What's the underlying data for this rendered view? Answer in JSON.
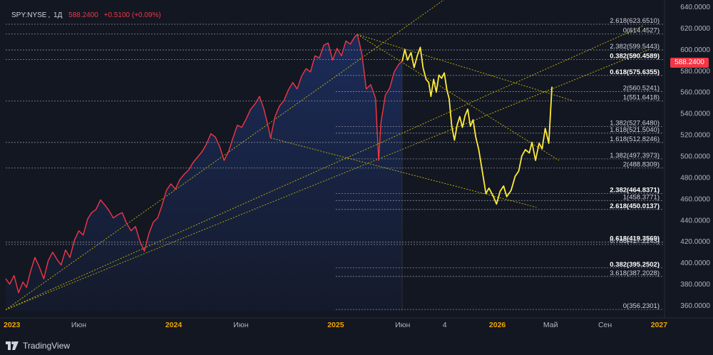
{
  "symbol": {
    "ticker": "SPY:NYSE",
    "interval": "1Д",
    "price": "588.2400",
    "change": "+0.5100 (+0.09%)"
  },
  "price_label": "588.2400",
  "brand": {
    "name": "TradingView",
    "icon": "tradingview-logo-icon"
  },
  "colors": {
    "background": "#131722",
    "history_line": "#f23645",
    "projection_line": "#ffeb3b",
    "fib_line": "#b2b5be",
    "trend_line": "#c8b900",
    "axis_text": "#b2b5be",
    "year_text": "#f0a500",
    "area_fill": "#1c2d5c"
  },
  "chart_data": {
    "type": "line",
    "y_axis": {
      "range": [
        355,
        641
      ],
      "ticks": [
        "640.0000",
        "620.0000",
        "600.0000",
        "580.0000",
        "560.0000",
        "540.0000",
        "520.0000",
        "500.0000",
        "480.0000",
        "460.0000",
        "440.0000",
        "420.0000",
        "400.0000",
        "380.0000",
        "360.0000"
      ],
      "tick_values": [
        640,
        620,
        600,
        580,
        560,
        540,
        520,
        500,
        480,
        460,
        440,
        420,
        400,
        380,
        360
      ]
    },
    "x_axis": {
      "range": [
        "2022-12-18",
        "2027-01-10"
      ],
      "labels": [
        {
          "text": "2023",
          "date": "2023-01-01",
          "year": true
        },
        {
          "text": "Июн",
          "date": "2023-06-01",
          "year": false
        },
        {
          "text": "2024",
          "date": "2024-01-01",
          "year": true
        },
        {
          "text": "Июн",
          "date": "2024-06-01",
          "year": false
        },
        {
          "text": "2025",
          "date": "2025-01-01",
          "year": true
        },
        {
          "text": "Июн",
          "date": "2025-06-01",
          "year": false
        },
        {
          "text": "4",
          "date": "2025-09-04",
          "year": false
        },
        {
          "text": "2026",
          "date": "2026-01-01",
          "year": true
        },
        {
          "text": "Май",
          "date": "2026-05-01",
          "year": false
        },
        {
          "text": "Сен",
          "date": "2026-09-01",
          "year": false
        },
        {
          "text": "2027",
          "date": "2027-01-01",
          "year": true
        }
      ]
    },
    "series": [
      {
        "role": "history",
        "color": "#f23645",
        "points": [
          [
            "2022-12-18",
            385
          ],
          [
            "2022-12-27",
            380
          ],
          [
            "2023-01-06",
            388
          ],
          [
            "2023-01-16",
            372
          ],
          [
            "2023-01-26",
            382
          ],
          [
            "2023-02-03",
            377
          ],
          [
            "2023-02-12",
            392
          ],
          [
            "2023-02-22",
            405
          ],
          [
            "2023-03-04",
            396
          ],
          [
            "2023-03-14",
            385
          ],
          [
            "2023-03-24",
            402
          ],
          [
            "2023-04-03",
            410
          ],
          [
            "2023-04-13",
            403
          ],
          [
            "2023-04-22",
            398
          ],
          [
            "2023-05-02",
            412
          ],
          [
            "2023-05-12",
            405
          ],
          [
            "2023-05-22",
            421
          ],
          [
            "2023-06-01",
            430
          ],
          [
            "2023-06-11",
            426
          ],
          [
            "2023-06-21",
            441
          ],
          [
            "2023-06-30",
            447
          ],
          [
            "2023-07-10",
            450
          ],
          [
            "2023-07-20",
            459
          ],
          [
            "2023-07-30",
            454
          ],
          [
            "2023-08-08",
            449
          ],
          [
            "2023-08-18",
            442
          ],
          [
            "2023-08-28",
            445
          ],
          [
            "2023-09-07",
            447
          ],
          [
            "2023-09-17",
            437
          ],
          [
            "2023-09-27",
            430
          ],
          [
            "2023-10-07",
            434
          ],
          [
            "2023-10-17",
            420
          ],
          [
            "2023-10-27",
            411
          ],
          [
            "2023-11-06",
            427
          ],
          [
            "2023-11-16",
            438
          ],
          [
            "2023-11-26",
            442
          ],
          [
            "2023-12-06",
            454
          ],
          [
            "2023-12-16",
            468
          ],
          [
            "2023-12-26",
            474
          ],
          [
            "2024-01-05",
            469
          ],
          [
            "2024-01-15",
            478
          ],
          [
            "2024-01-25",
            483
          ],
          [
            "2024-02-04",
            487
          ],
          [
            "2024-02-14",
            494
          ],
          [
            "2024-02-24",
            499
          ],
          [
            "2024-03-05",
            504
          ],
          [
            "2024-03-15",
            511
          ],
          [
            "2024-03-25",
            521
          ],
          [
            "2024-04-04",
            518
          ],
          [
            "2024-04-14",
            509
          ],
          [
            "2024-04-24",
            496
          ],
          [
            "2024-05-04",
            504
          ],
          [
            "2024-05-14",
            517
          ],
          [
            "2024-05-24",
            529
          ],
          [
            "2024-06-03",
            527
          ],
          [
            "2024-06-13",
            535
          ],
          [
            "2024-06-23",
            544
          ],
          [
            "2024-07-03",
            549
          ],
          [
            "2024-07-13",
            556
          ],
          [
            "2024-07-23",
            544
          ],
          [
            "2024-08-02",
            527
          ],
          [
            "2024-08-07",
            517
          ],
          [
            "2024-08-17",
            537
          ],
          [
            "2024-08-27",
            547
          ],
          [
            "2024-09-06",
            552
          ],
          [
            "2024-09-16",
            562
          ],
          [
            "2024-09-26",
            569
          ],
          [
            "2024-10-06",
            563
          ],
          [
            "2024-10-16",
            575
          ],
          [
            "2024-10-26",
            582
          ],
          [
            "2024-11-05",
            579
          ],
          [
            "2024-11-15",
            594
          ],
          [
            "2024-11-25",
            592
          ],
          [
            "2024-12-05",
            604
          ],
          [
            "2024-12-15",
            606
          ],
          [
            "2024-12-25",
            590
          ],
          [
            "2025-01-04",
            601
          ],
          [
            "2025-01-14",
            594
          ],
          [
            "2025-01-24",
            608
          ],
          [
            "2025-02-03",
            605
          ],
          [
            "2025-02-13",
            612
          ],
          [
            "2025-02-19",
            614
          ],
          [
            "2025-03-01",
            596
          ],
          [
            "2025-03-11",
            563
          ],
          [
            "2025-03-21",
            567
          ],
          [
            "2025-04-01",
            554
          ],
          [
            "2025-04-08",
            496
          ],
          [
            "2025-04-13",
            531
          ],
          [
            "2025-04-23",
            557
          ],
          [
            "2025-05-03",
            564
          ],
          [
            "2025-05-13",
            579
          ],
          [
            "2025-05-23",
            586
          ],
          [
            "2025-05-31",
            589
          ]
        ]
      },
      {
        "role": "projection",
        "color": "#ffeb3b",
        "points": [
          [
            "2025-05-31",
            589
          ],
          [
            "2025-06-06",
            600
          ],
          [
            "2025-06-12",
            590
          ],
          [
            "2025-06-20",
            597
          ],
          [
            "2025-06-27",
            583
          ],
          [
            "2025-07-04",
            594
          ],
          [
            "2025-07-11",
            602
          ],
          [
            "2025-07-17",
            583
          ],
          [
            "2025-07-24",
            572
          ],
          [
            "2025-07-30",
            569
          ],
          [
            "2025-08-04",
            556
          ],
          [
            "2025-08-10",
            572
          ],
          [
            "2025-08-16",
            560
          ],
          [
            "2025-08-22",
            576
          ],
          [
            "2025-08-28",
            573
          ],
          [
            "2025-09-03",
            578
          ],
          [
            "2025-09-09",
            562
          ],
          [
            "2025-09-14",
            554
          ],
          [
            "2025-09-20",
            528
          ],
          [
            "2025-09-26",
            515
          ],
          [
            "2025-10-02",
            529
          ],
          [
            "2025-10-08",
            537
          ],
          [
            "2025-10-14",
            527
          ],
          [
            "2025-10-20",
            538
          ],
          [
            "2025-10-26",
            544
          ],
          [
            "2025-11-01",
            528
          ],
          [
            "2025-11-07",
            534
          ],
          [
            "2025-11-13",
            518
          ],
          [
            "2025-11-20",
            506
          ],
          [
            "2025-11-27",
            488
          ],
          [
            "2025-12-06",
            465
          ],
          [
            "2025-12-13",
            470
          ],
          [
            "2025-12-22",
            463
          ],
          [
            "2025-12-30",
            455
          ],
          [
            "2026-01-07",
            467
          ],
          [
            "2026-01-15",
            472
          ],
          [
            "2026-01-22",
            462
          ],
          [
            "2026-02-01",
            468
          ],
          [
            "2026-02-10",
            481
          ],
          [
            "2026-02-18",
            486
          ],
          [
            "2026-02-25",
            500
          ],
          [
            "2026-03-05",
            506
          ],
          [
            "2026-03-14",
            503
          ],
          [
            "2026-03-20",
            513
          ],
          [
            "2026-03-28",
            496
          ],
          [
            "2026-04-05",
            512
          ],
          [
            "2026-04-12",
            507
          ],
          [
            "2026-04-19",
            526
          ],
          [
            "2026-04-27",
            512
          ],
          [
            "2026-05-04",
            565
          ]
        ]
      }
    ],
    "fib_levels": [
      {
        "label": "2.618(623.6510)",
        "value": 623.651,
        "bold": false,
        "x_from": "2022-12-18"
      },
      {
        "label": "0(614.4527)",
        "value": 614.4527,
        "bold": false,
        "x_from": "2022-12-18"
      },
      {
        "label": "2.382(599.5443)",
        "value": 599.5443,
        "bold": false,
        "x_from": "2022-12-18"
      },
      {
        "label": "0.382(590.4589)",
        "value": 590.4589,
        "bold": true,
        "x_from": "2022-12-18"
      },
      {
        "label": "0.618(575.6355)",
        "value": 575.6355,
        "bold": true,
        "x_from": "2025-01-01"
      },
      {
        "label": "2(560.5241)",
        "value": 560.5241,
        "bold": false,
        "x_from": "2025-01-01"
      },
      {
        "label": "1(551.6418)",
        "value": 551.6418,
        "bold": false,
        "x_from": "2022-12-18"
      },
      {
        "label": "1.382(527.6480)",
        "value": 527.648,
        "bold": false,
        "x_from": "2025-01-01"
      },
      {
        "label": "1.618(521.5040)",
        "value": 521.504,
        "bold": false,
        "x_from": "2025-01-01"
      },
      {
        "label": "1.618(512.8246)",
        "value": 512.8246,
        "bold": false,
        "x_from": "2022-12-18"
      },
      {
        "label": "1.382(497.3973)",
        "value": 497.3973,
        "bold": false,
        "x_from": "2025-01-01"
      },
      {
        "label": "2(488.8309)",
        "value": 488.8309,
        "bold": false,
        "x_from": "2022-12-18"
      },
      {
        "label": "2.382(464.8371)",
        "value": 464.8371,
        "bold": true,
        "x_from": "2025-01-01"
      },
      {
        "label": "1(458.3771)",
        "value": 458.3771,
        "bold": false,
        "x_from": "2025-01-01"
      },
      {
        "label": "2.618(450.0137)",
        "value": 450.0137,
        "bold": true,
        "x_from": "2025-01-01"
      },
      {
        "label": "0.618(419.3569)",
        "value": 419.3569,
        "bold": true,
        "x_from": "2022-12-18"
      },
      {
        "label": "0.786(417.2243)",
        "value": 417.2243,
        "bold": false,
        "x_from": "2022-12-18"
      },
      {
        "label": "0.382(395.2502)",
        "value": 395.2502,
        "bold": true,
        "x_from": "2025-01-01"
      },
      {
        "label": "3.618(387.2028)",
        "value": 387.2028,
        "bold": false,
        "x_from": "2025-01-01"
      },
      {
        "label": "0(356.2301)",
        "value": 356.2301,
        "bold": false,
        "x_from": "2025-01-01"
      }
    ],
    "trend_lines": [
      {
        "from": [
          "2022-12-18",
          356
        ],
        "to": [
          "2026-01-01",
          682
        ]
      },
      {
        "from": [
          "2022-12-18",
          356
        ],
        "to": [
          "2026-11-25",
          622
        ]
      },
      {
        "from": [
          "2022-12-18",
          356
        ],
        "to": [
          "2026-12-10",
          600
        ]
      },
      {
        "from": [
          "2025-02-19",
          614
        ],
        "to": [
          "2026-06-20",
          552
        ]
      },
      {
        "from": [
          "2025-02-19",
          614
        ],
        "to": [
          "2026-05-20",
          496
        ]
      },
      {
        "from": [
          "2024-08-07",
          517
        ],
        "to": [
          "2026-03-30",
          452
        ]
      }
    ]
  }
}
